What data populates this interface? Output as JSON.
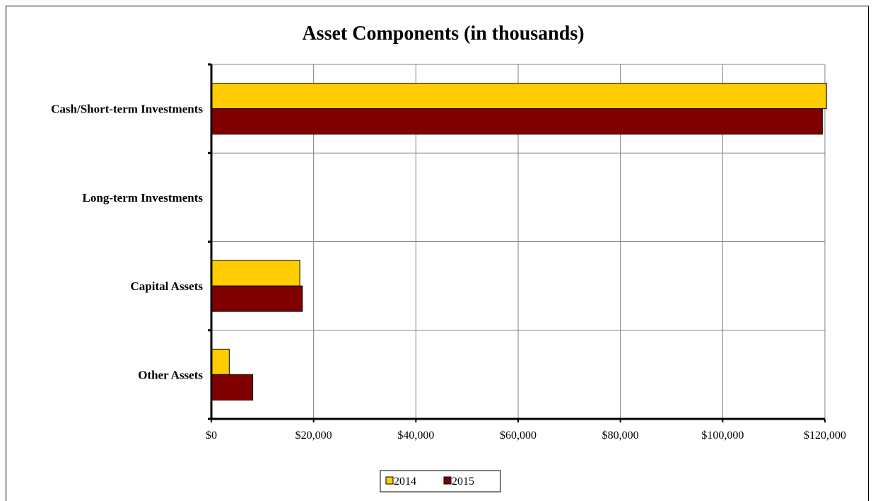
{
  "chart_data": {
    "type": "bar",
    "orientation": "horizontal",
    "title": "Asset Components (in thousands)",
    "categories": [
      "Cash/Short-term Investments",
      "Long-term Investments",
      "Capital Assets",
      "Other Assets"
    ],
    "series": [
      {
        "name": "2014",
        "color": "#FFCC00",
        "values": [
          120300,
          0,
          17300,
          3500
        ]
      },
      {
        "name": "2015",
        "color": "#800000",
        "values": [
          119500,
          0,
          17800,
          8100
        ]
      }
    ],
    "x_ticks": [
      "$0",
      "$20,000",
      "$40,000",
      "$60,000",
      "$80,000",
      "$100,000",
      "$120,000"
    ],
    "xlim": [
      0,
      120000
    ],
    "grid": true,
    "legend_position": "bottom"
  }
}
